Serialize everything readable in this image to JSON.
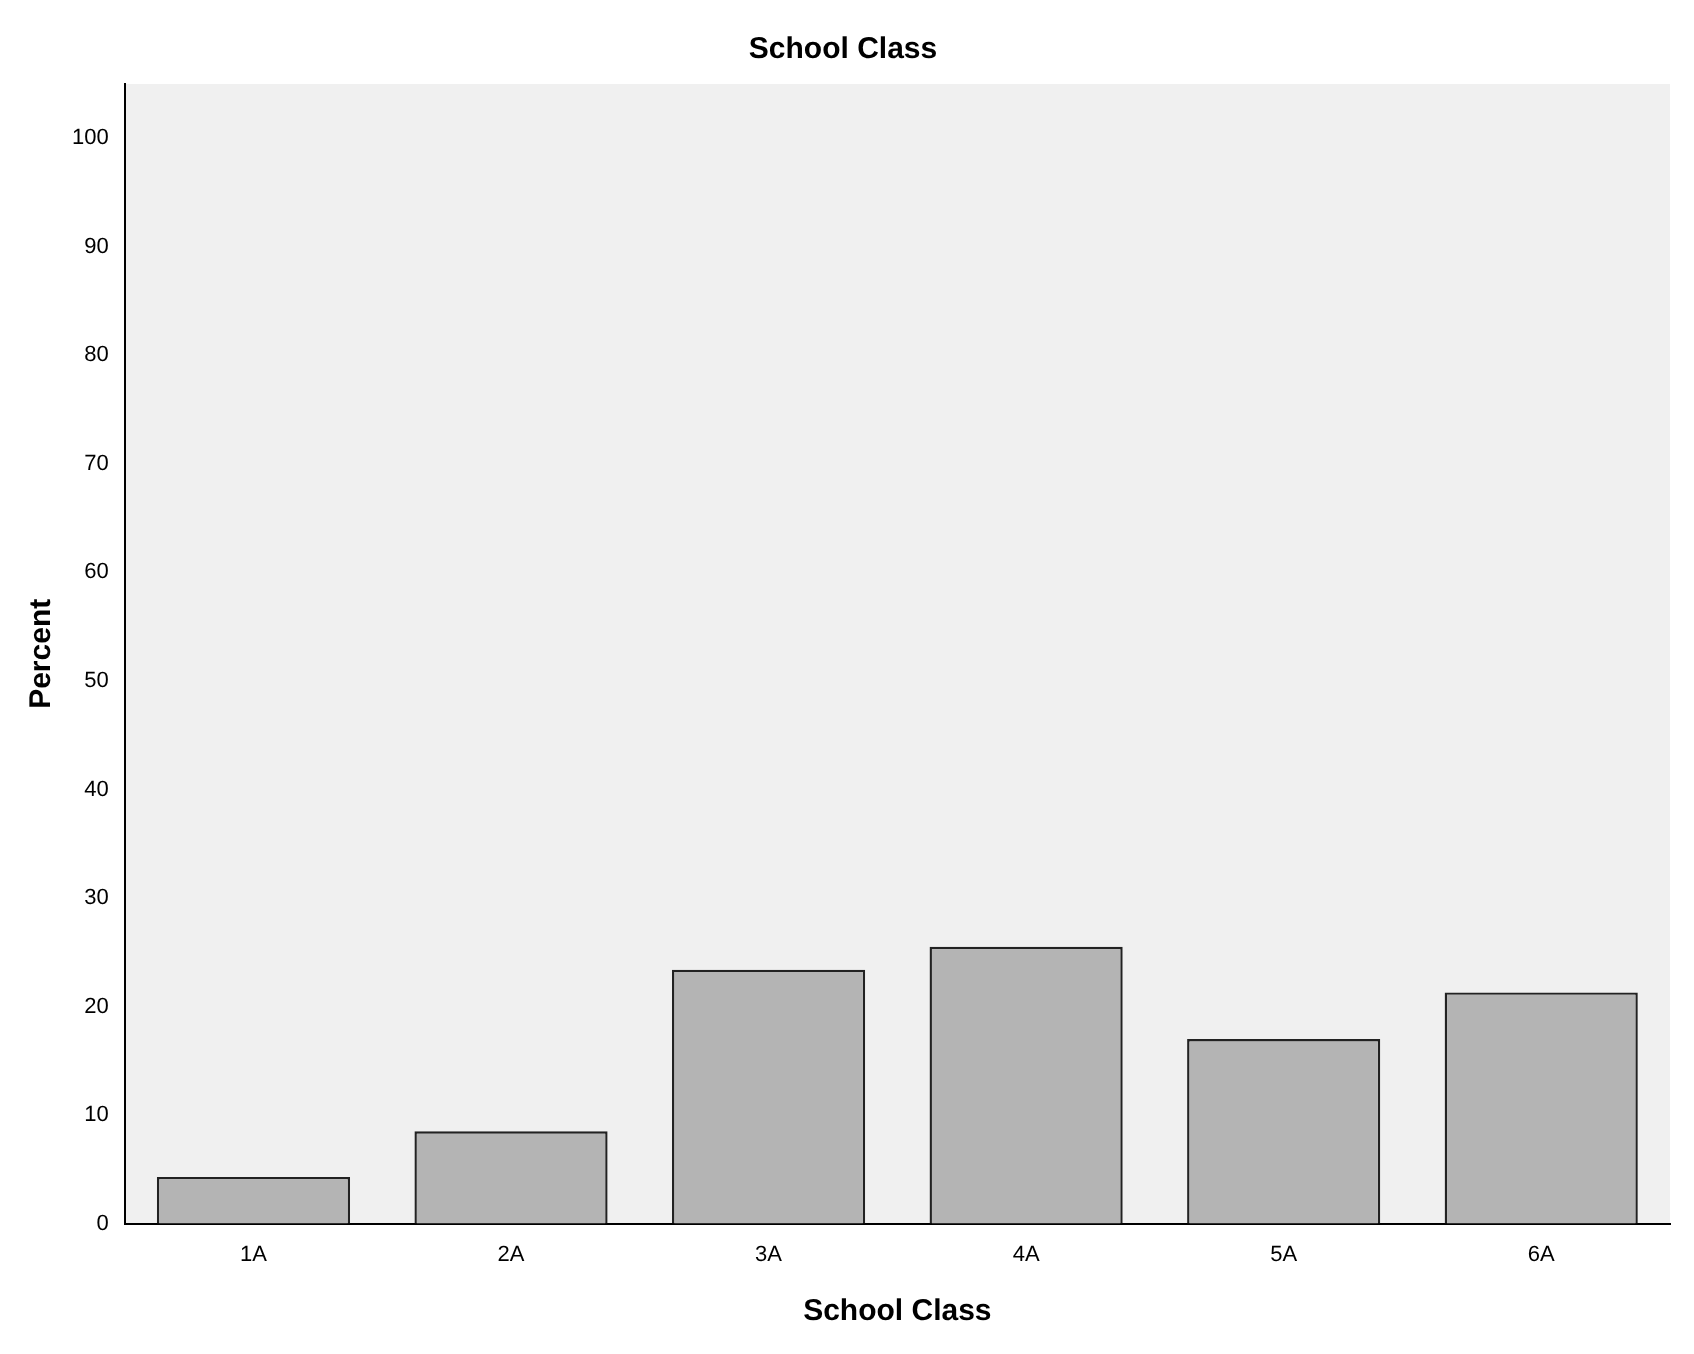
{
  "chart_data": {
    "type": "bar",
    "title": "School Class",
    "xlabel": "School Class",
    "ylabel": "Percent",
    "categories": [
      "1A",
      "2A",
      "3A",
      "4A",
      "5A",
      "6A"
    ],
    "values": [
      4.3,
      8.5,
      23.4,
      25.5,
      17.0,
      21.3
    ],
    "color": "#b4b4b4",
    "ylim": [
      0,
      105
    ],
    "yticks": [
      0,
      10,
      20,
      30,
      40,
      50,
      60,
      70,
      80,
      90,
      100
    ],
    "grid": false,
    "legend": false
  }
}
